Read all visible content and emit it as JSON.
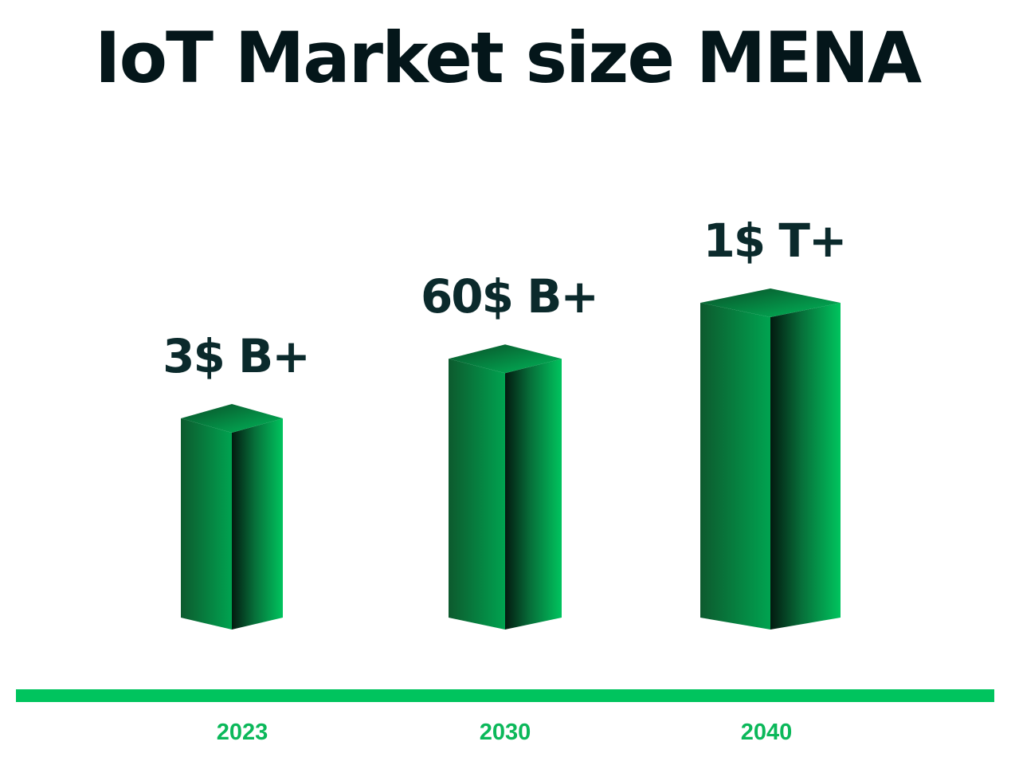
{
  "chart_data": {
    "type": "bar",
    "title": "IoT Market size MENA",
    "categories": [
      "2023",
      "2030",
      "2040"
    ],
    "values": [
      3,
      60,
      1000
    ],
    "value_unit": "billion USD",
    "data_labels": [
      "3$ B+",
      "60$ B+",
      "1$ T+"
    ],
    "xlabel": "",
    "ylabel": "",
    "grid": false,
    "legend": "none",
    "style": "3d-prism"
  },
  "colors": {
    "title": "#04161a",
    "value_label": "#0b2a2c",
    "year_label": "#0bb85a",
    "axis_line": "#00c45e",
    "bar_light": "#00c05f",
    "bar_dark": "#062518"
  }
}
